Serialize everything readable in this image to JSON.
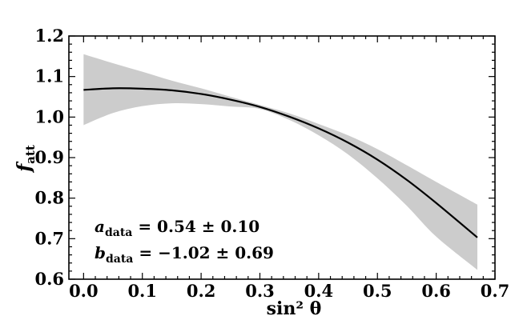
{
  "chart_data": {
    "type": "line",
    "xlabel": "sin² θ",
    "ylabel": "f",
    "ylabel_sub": "att",
    "xlim": [
      -0.025,
      0.7
    ],
    "ylim": [
      0.6,
      1.2
    ],
    "xticks": [
      0.0,
      0.1,
      0.2,
      0.3,
      0.4,
      0.5,
      0.6,
      0.7
    ],
    "xtick_labels": [
      "0.0",
      "0.1",
      "0.2",
      "0.3",
      "0.4",
      "0.5",
      "0.6",
      "0.7"
    ],
    "yticks": [
      0.6,
      0.7,
      0.8,
      0.9,
      1.0,
      1.1,
      1.2
    ],
    "ytick_labels": [
      "0.6",
      "0.7",
      "0.8",
      "0.9",
      "1.0",
      "1.1",
      "1.2"
    ],
    "grid": false,
    "series": [
      {
        "style": "line",
        "color": "#000000",
        "x": [
          0.0,
          0.05,
          0.1,
          0.15,
          0.2,
          0.25,
          0.3,
          0.35,
          0.4,
          0.45,
          0.5,
          0.55,
          0.6,
          0.67
        ],
        "y": [
          1.067,
          1.071,
          1.07,
          1.066,
          1.057,
          1.043,
          1.025,
          1.001,
          0.972,
          0.937,
          0.895,
          0.845,
          0.788,
          0.703
        ]
      },
      {
        "style": "band",
        "color": "#cccccc",
        "x": [
          0.0,
          0.05,
          0.1,
          0.15,
          0.2,
          0.25,
          0.3,
          0.35,
          0.4,
          0.45,
          0.5,
          0.55,
          0.6,
          0.67
        ],
        "lower": [
          0.98,
          1.01,
          1.027,
          1.034,
          1.032,
          1.026,
          1.02,
          0.993,
          0.955,
          0.908,
          0.849,
          0.781,
          0.705,
          0.623
        ],
        "upper": [
          1.155,
          1.133,
          1.112,
          1.09,
          1.071,
          1.05,
          1.03,
          1.009,
          0.983,
          0.955,
          0.921,
          0.881,
          0.84,
          0.784
        ]
      }
    ],
    "annotations": [
      {
        "var": "a",
        "sub": "data",
        "value": " = 0.54 ± 0.10"
      },
      {
        "var": "b",
        "sub": "data",
        "value": " = −1.02 ± 0.69"
      }
    ]
  }
}
